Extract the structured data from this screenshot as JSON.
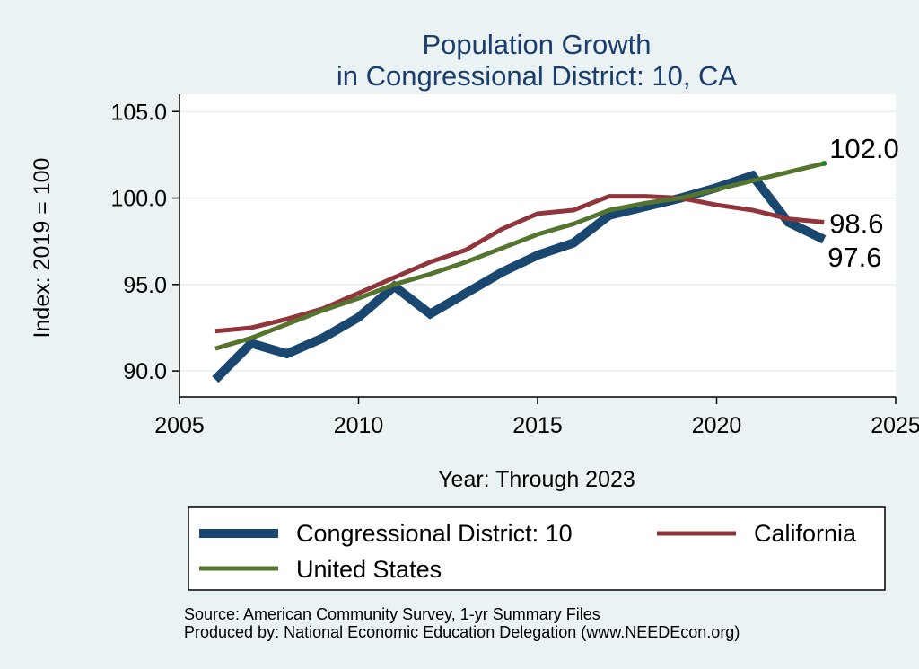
{
  "chart_data": {
    "type": "line",
    "title": [
      "Population Growth",
      "in Congressional District: 10, CA"
    ],
    "xlabel": "Year: Through 2023",
    "ylabel": "Index: 2019 = 100",
    "xlim": [
      2005,
      2025
    ],
    "ylim": [
      88.5,
      106
    ],
    "xticks": [
      2005,
      2010,
      2015,
      2020,
      2025
    ],
    "yticks": [
      90,
      95,
      100,
      105
    ],
    "ytick_labels": [
      "90.0",
      "95.0",
      "100.0",
      "105.0"
    ],
    "x": [
      2006,
      2007,
      2008,
      2009,
      2010,
      2011,
      2012,
      2013,
      2014,
      2015,
      2016,
      2017,
      2018,
      2019,
      2020,
      2021,
      2022,
      2023
    ],
    "series": [
      {
        "name": "Congressional District: 10",
        "color": "#1a476f",
        "values": [
          89.5,
          91.6,
          91.0,
          91.9,
          93.1,
          94.9,
          93.3,
          94.5,
          95.7,
          96.7,
          97.4,
          99.0,
          99.5,
          100.0,
          100.6,
          101.3,
          98.6,
          97.6
        ],
        "end_label": "97.6"
      },
      {
        "name": "California",
        "color": "#90353b",
        "values": [
          92.3,
          92.5,
          93.0,
          93.6,
          94.5,
          95.4,
          96.3,
          97.0,
          98.2,
          99.1,
          99.3,
          100.1,
          100.1,
          100.0,
          99.6,
          99.3,
          98.8,
          98.6
        ],
        "end_label": "98.6"
      },
      {
        "name": "United States",
        "color": "#55752f",
        "values": [
          91.3,
          91.9,
          92.7,
          93.5,
          94.2,
          95.0,
          95.6,
          96.3,
          97.1,
          97.9,
          98.5,
          99.3,
          99.7,
          100.0,
          100.5,
          101.0,
          101.5,
          102.0
        ],
        "end_label": "102.0"
      }
    ],
    "legend": [
      "Congressional District: 10",
      "California",
      "United States"
    ],
    "legend_position": "bottom",
    "grid": true
  },
  "notes": {
    "source": "Source: American Community Survey, 1-yr Summary Files",
    "produced_by": "Produced by: National Economic Education Delegation (www.NEEDEcon.org)"
  }
}
